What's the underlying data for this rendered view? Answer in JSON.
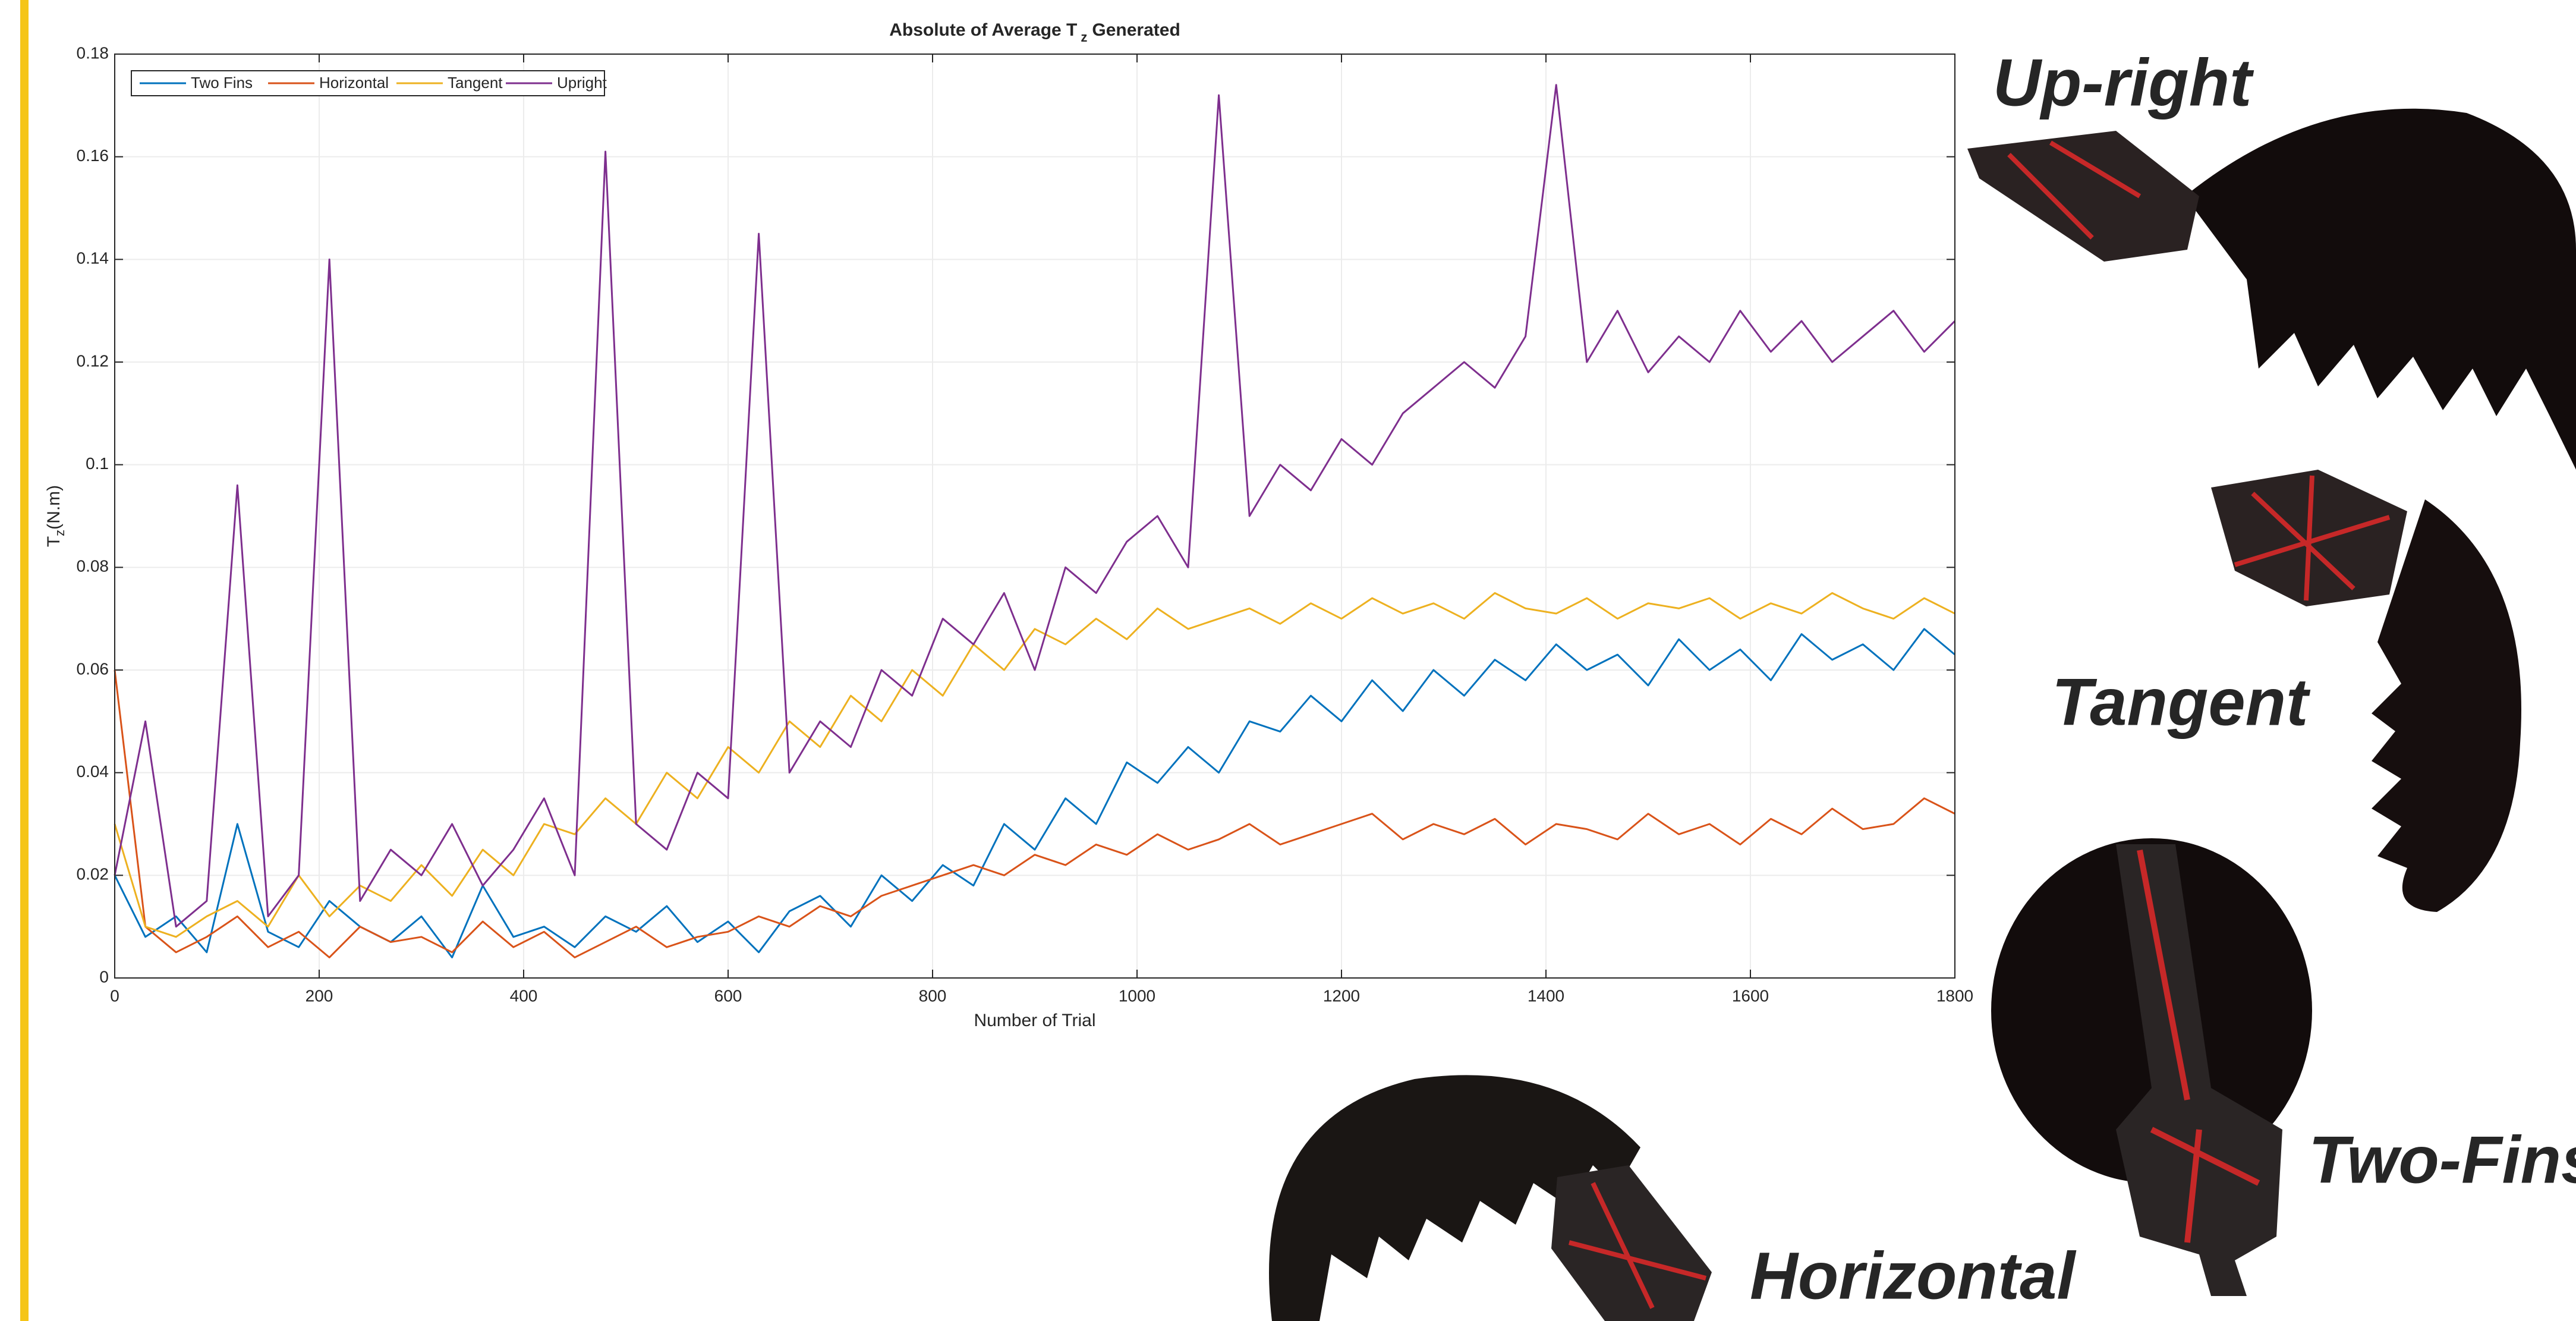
{
  "chart_data": {
    "type": "line",
    "title": [
      "Absolute of Average T",
      "z",
      "Generated"
    ],
    "xlabel": "Number of Trial",
    "ylabel": [
      "T",
      "z",
      "(N.m)"
    ],
    "x": [
      0,
      30,
      60,
      90,
      120,
      150,
      180,
      210,
      240,
      270,
      300,
      330,
      360,
      390,
      420,
      450,
      480,
      510,
      540,
      570,
      600,
      630,
      660,
      690,
      720,
      750,
      780,
      810,
      840,
      870,
      900,
      930,
      960,
      990,
      1020,
      1050,
      1080,
      1110,
      1140,
      1170,
      1200,
      1230,
      1260,
      1290,
      1320,
      1350,
      1380,
      1410,
      1440,
      1470,
      1500,
      1530,
      1560,
      1590,
      1620,
      1650,
      1680,
      1710,
      1740,
      1770,
      1800
    ],
    "series": [
      {
        "name": "Two Fins",
        "color": "#0072bd",
        "values": [
          0.02,
          0.008,
          0.012,
          0.005,
          0.03,
          0.009,
          0.006,
          0.015,
          0.01,
          0.007,
          0.012,
          0.004,
          0.018,
          0.008,
          0.01,
          0.006,
          0.012,
          0.009,
          0.014,
          0.007,
          0.011,
          0.005,
          0.013,
          0.016,
          0.01,
          0.02,
          0.015,
          0.022,
          0.018,
          0.03,
          0.025,
          0.035,
          0.03,
          0.042,
          0.038,
          0.045,
          0.04,
          0.05,
          0.048,
          0.055,
          0.05,
          0.058,
          0.052,
          0.06,
          0.055,
          0.062,
          0.058,
          0.065,
          0.06,
          0.063,
          0.057,
          0.066,
          0.06,
          0.064,
          0.058,
          0.067,
          0.062,
          0.065,
          0.06,
          0.068,
          0.063
        ]
      },
      {
        "name": "Horizontal",
        "color": "#d95319",
        "values": [
          0.06,
          0.01,
          0.005,
          0.008,
          0.012,
          0.006,
          0.009,
          0.004,
          0.01,
          0.007,
          0.008,
          0.005,
          0.011,
          0.006,
          0.009,
          0.004,
          0.007,
          0.01,
          0.006,
          0.008,
          0.009,
          0.012,
          0.01,
          0.014,
          0.012,
          0.016,
          0.018,
          0.02,
          0.022,
          0.02,
          0.024,
          0.022,
          0.026,
          0.024,
          0.028,
          0.025,
          0.027,
          0.03,
          0.026,
          0.028,
          0.03,
          0.032,
          0.027,
          0.03,
          0.028,
          0.031,
          0.026,
          0.03,
          0.029,
          0.027,
          0.032,
          0.028,
          0.03,
          0.026,
          0.031,
          0.028,
          0.033,
          0.029,
          0.03,
          0.035,
          0.032
        ]
      },
      {
        "name": "Tangent",
        "color": "#edb120",
        "values": [
          0.03,
          0.01,
          0.008,
          0.012,
          0.015,
          0.01,
          0.02,
          0.012,
          0.018,
          0.015,
          0.022,
          0.016,
          0.025,
          0.02,
          0.03,
          0.028,
          0.035,
          0.03,
          0.04,
          0.035,
          0.045,
          0.04,
          0.05,
          0.045,
          0.055,
          0.05,
          0.06,
          0.055,
          0.065,
          0.06,
          0.068,
          0.065,
          0.07,
          0.066,
          0.072,
          0.068,
          0.07,
          0.072,
          0.069,
          0.073,
          0.07,
          0.074,
          0.071,
          0.073,
          0.07,
          0.075,
          0.072,
          0.071,
          0.074,
          0.07,
          0.073,
          0.072,
          0.074,
          0.07,
          0.073,
          0.071,
          0.075,
          0.072,
          0.07,
          0.074,
          0.071
        ]
      },
      {
        "name": "Upright",
        "color": "#7e2f8e",
        "values": [
          0.02,
          0.05,
          0.01,
          0.015,
          0.096,
          0.012,
          0.02,
          0.14,
          0.015,
          0.025,
          0.02,
          0.03,
          0.018,
          0.025,
          0.035,
          0.02,
          0.161,
          0.03,
          0.025,
          0.04,
          0.035,
          0.145,
          0.04,
          0.05,
          0.045,
          0.06,
          0.055,
          0.07,
          0.065,
          0.075,
          0.06,
          0.08,
          0.075,
          0.085,
          0.09,
          0.08,
          0.172,
          0.09,
          0.1,
          0.095,
          0.105,
          0.1,
          0.11,
          0.115,
          0.12,
          0.115,
          0.125,
          0.174,
          0.12,
          0.13,
          0.118,
          0.125,
          0.12,
          0.13,
          0.122,
          0.128,
          0.12,
          0.125,
          0.13,
          0.122,
          0.128
        ]
      }
    ],
    "xlim": [
      0,
      1800
    ],
    "xticks": [
      0,
      200,
      400,
      600,
      800,
      1000,
      1200,
      1400,
      1600,
      1800
    ],
    "ylim": [
      0,
      0.18
    ],
    "yticks": [
      0,
      0.02,
      0.04,
      0.06,
      0.08,
      0.1,
      0.12,
      0.14,
      0.16,
      0.18
    ],
    "grid": true,
    "legend": "top-left",
    "annotations": [
      {
        "text": "Up-right",
        "color": "#8e4fa8"
      },
      {
        "text": "Tangent",
        "color": "#e6a317"
      },
      {
        "text": "Two-Fins",
        "color": "#4a90c8"
      },
      {
        "text": "Horizontal",
        "color": "#e07a4a"
      }
    ]
  }
}
